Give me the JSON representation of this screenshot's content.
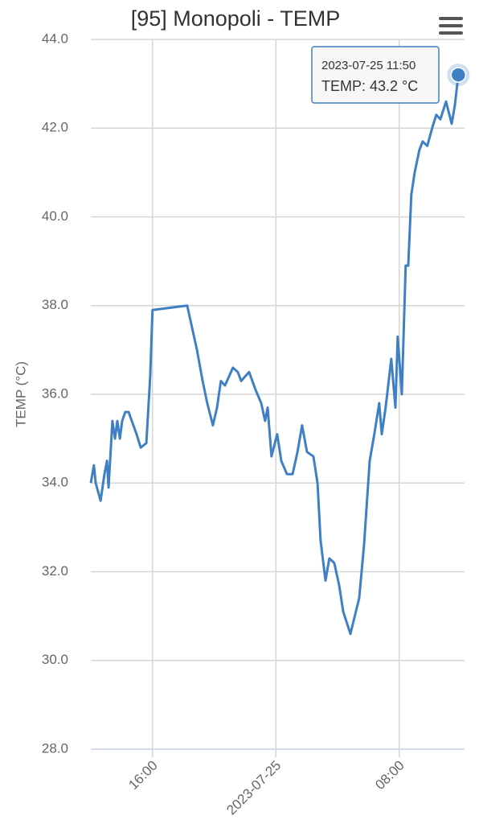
{
  "chart_data": {
    "type": "line",
    "title": "[95] Monopoli - TEMP",
    "y_label": "TEMP (°C)",
    "x": [
      "2023-07-24 12:00",
      "2023-07-24 12:12",
      "2023-07-24 12:19",
      "2023-07-24 12:38",
      "2023-07-24 12:53",
      "2023-07-24 13:03",
      "2023-07-24 13:09",
      "2023-07-24 13:24",
      "2023-07-24 13:34",
      "2023-07-24 13:43",
      "2023-07-24 13:53",
      "2023-07-24 14:02",
      "2023-07-24 14:14",
      "2023-07-24 14:27",
      "2023-07-24 14:58",
      "2023-07-24 15:14",
      "2023-07-24 15:36",
      "2023-07-24 15:51",
      "2023-07-24 16:00",
      "2023-07-24 18:15",
      "2023-07-24 18:53",
      "2023-07-24 19:15",
      "2023-07-24 19:33",
      "2023-07-24 19:55",
      "2023-07-24 20:11",
      "2023-07-24 20:26",
      "2023-07-24 20:42",
      "2023-07-24 21:13",
      "2023-07-24 21:32",
      "2023-07-24 21:45",
      "2023-07-24 22:00",
      "2023-07-24 22:16",
      "2023-07-24 22:41",
      "2023-07-24 23:03",
      "2023-07-24 23:18",
      "2023-07-24 23:28",
      "2023-07-24 23:43",
      "2023-07-25 00:05",
      "2023-07-25 00:21",
      "2023-07-25 00:43",
      "2023-07-25 01:05",
      "2023-07-25 01:24",
      "2023-07-25 01:42",
      "2023-07-25 02:01",
      "2023-07-25 02:26",
      "2023-07-25 02:42",
      "2023-07-25 02:54",
      "2023-07-25 03:13",
      "2023-07-25 03:28",
      "2023-07-25 03:47",
      "2023-07-25 04:06",
      "2023-07-25 04:22",
      "2023-07-25 04:50",
      "2023-07-25 05:24",
      "2023-07-25 05:43",
      "2023-07-25 06:05",
      "2023-07-25 06:23",
      "2023-07-25 06:42",
      "2023-07-25 06:52",
      "2023-07-25 07:07",
      "2023-07-25 07:29",
      "2023-07-25 07:45",
      "2023-07-25 07:54",
      "2023-07-25 08:10",
      "2023-07-25 08:25",
      "2023-07-25 08:35",
      "2023-07-25 08:47",
      "2023-07-25 09:00",
      "2023-07-25 09:18",
      "2023-07-25 09:31",
      "2023-07-25 09:49",
      "2023-07-25 10:08",
      "2023-07-25 10:24",
      "2023-07-25 10:40",
      "2023-07-25 11:02",
      "2023-07-25 11:24",
      "2023-07-25 11:36",
      "2023-07-25 11:50"
    ],
    "series": [
      {
        "name": "TEMP",
        "color": "#3f80c4",
        "values": [
          34.0,
          34.4,
          34.0,
          33.6,
          34.2,
          34.5,
          33.9,
          35.4,
          35.0,
          35.4,
          35.0,
          35.4,
          35.6,
          35.6,
          35.1,
          34.8,
          34.9,
          36.4,
          37.9,
          38.0,
          37.0,
          36.3,
          35.8,
          35.3,
          35.7,
          36.3,
          36.2,
          36.6,
          36.5,
          36.3,
          36.4,
          36.5,
          36.1,
          35.8,
          35.4,
          35.7,
          34.6,
          35.1,
          34.5,
          34.2,
          34.2,
          34.7,
          35.3,
          34.7,
          34.6,
          34.0,
          32.7,
          31.8,
          32.3,
          32.2,
          31.7,
          31.1,
          30.6,
          31.4,
          32.6,
          34.5,
          35.1,
          35.8,
          35.1,
          35.7,
          36.8,
          35.7,
          37.3,
          36.0,
          38.9,
          38.9,
          40.5,
          41.0,
          41.5,
          41.7,
          41.6,
          42.0,
          42.3,
          42.2,
          42.6,
          42.1,
          42.5,
          43.2
        ]
      }
    ],
    "xlim": [
      "2023-07-24 12:00",
      "2023-07-25 12:14"
    ],
    "xticks": [
      {
        "value": "2023-07-24 16:00",
        "label": "16:00"
      },
      {
        "value": "2023-07-25 00:00",
        "label": "2023-07-25"
      },
      {
        "value": "2023-07-25 08:00",
        "label": "08:00"
      }
    ],
    "ylim": [
      28,
      44
    ],
    "yticks": [
      {
        "value": 28,
        "label": "28.0"
      },
      {
        "value": 30,
        "label": "30.0"
      },
      {
        "value": 32,
        "label": "32.0"
      },
      {
        "value": 34,
        "label": "34.0"
      },
      {
        "value": 36,
        "label": "36.0"
      },
      {
        "value": 38,
        "label": "38.0"
      },
      {
        "value": 40,
        "label": "40.0"
      },
      {
        "value": 42,
        "label": "42.0"
      },
      {
        "value": 44,
        "label": "44.0"
      }
    ],
    "grid": true,
    "tooltip": {
      "text": "TEMP: 43.2 °C"
    }
  }
}
